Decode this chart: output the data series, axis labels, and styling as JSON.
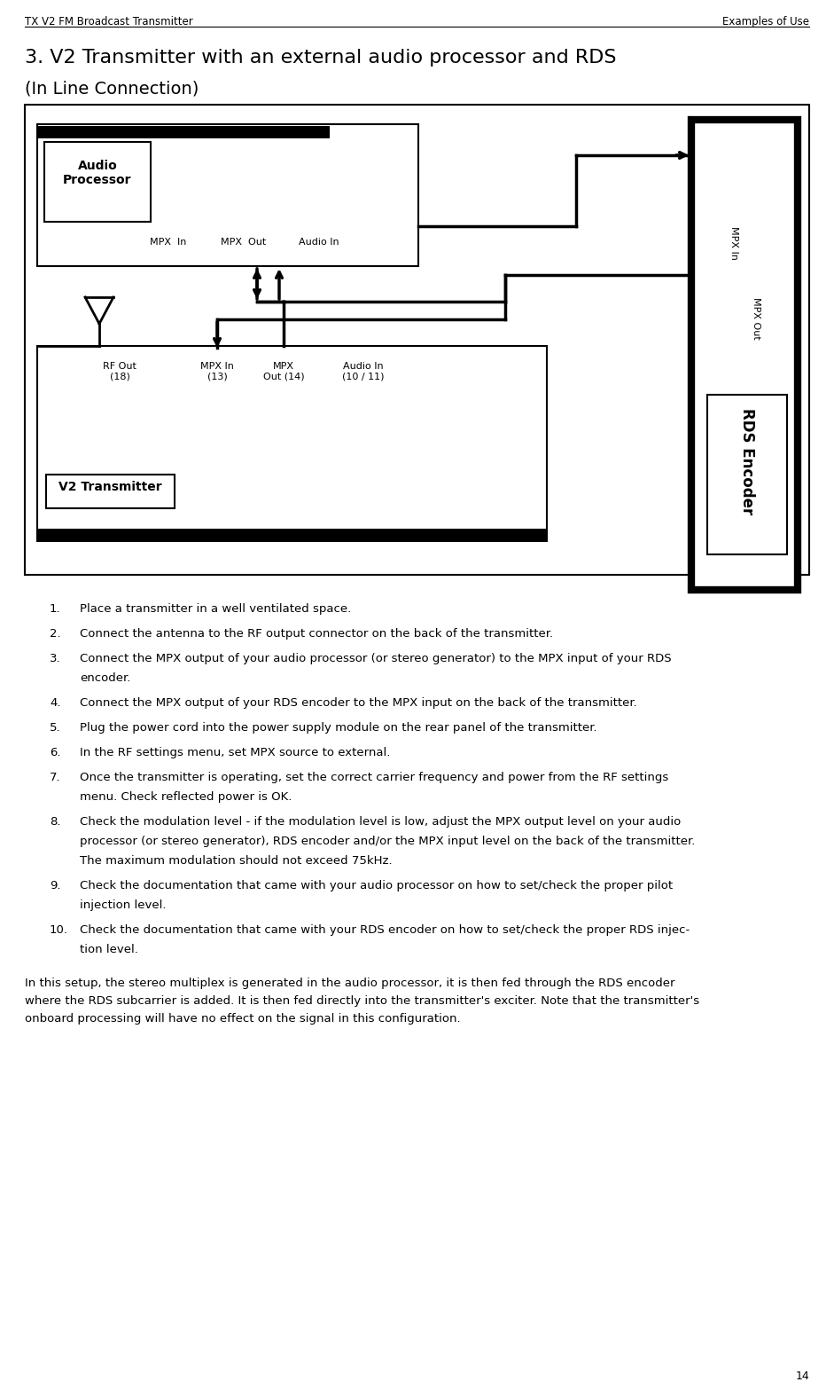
{
  "header_left": "TX V2 FM Broadcast Transmitter",
  "header_right": "Examples of Use",
  "title": "3. V2 Transmitter with an external audio processor and RDS",
  "subtitle": "(In Line Connection)",
  "page_number": "14",
  "instructions": [
    [
      "Place a transmitter in a well ventilated space."
    ],
    [
      "Connect the antenna to the RF output connector on the back of the transmitter."
    ],
    [
      "Connect the MPX output of your audio processor (or stereo generator) to the MPX input of your RDS",
      "encoder."
    ],
    [
      "Connect the MPX output of your RDS encoder to the MPX input on the back of the transmitter."
    ],
    [
      "Plug the power cord into the power supply module on the rear panel of the transmitter."
    ],
    [
      "In the RF settings menu, set MPX source to external."
    ],
    [
      "Once the transmitter is operating, set the correct carrier frequency and power from the RF settings",
      "menu. Check reflected power is OK."
    ],
    [
      "Check the modulation level - if the modulation level is low, adjust the MPX output level on your audio",
      "processor (or stereo generator), RDS encoder and/or the MPX input level on the back of the transmitter.",
      "The maximum modulation should not exceed 75kHz."
    ],
    [
      "Check the documentation that came with your audio processor on how to set/check the proper pilot",
      "injection level."
    ],
    [
      "Check the documentation that came with your RDS encoder on how to set/check the proper RDS injec-",
      "tion level."
    ]
  ],
  "footer_lines": [
    "In this setup, the stereo multiplex is generated in the audio processor, it is then fed through the RDS encoder",
    "where the RDS subcarrier is added. It is then fed directly into the transmitter's exciter. Note that the transmitter's",
    "onboard processing will have no effect on the signal in this configuration."
  ]
}
